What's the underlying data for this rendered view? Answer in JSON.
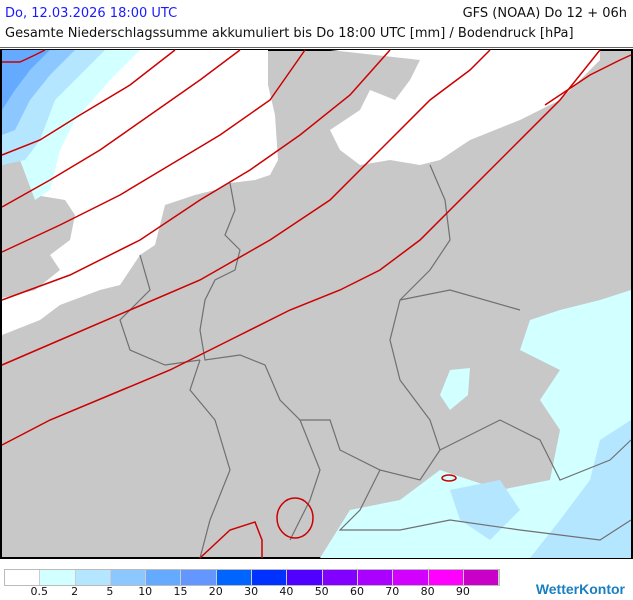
{
  "header": {
    "valid_time": "Do, 12.03.2026 18:00 UTC",
    "model_run": "GFS (NOAA) Do 12 + 06h",
    "title": "Gesamte Niederschlagssumme akkumuliert bis Do 18:00 UTC [mm] / Bodendruck [hPa]"
  },
  "map": {
    "colors": {
      "land": "#c8c8c8",
      "sea": "#ffffff",
      "isobar": "#cc0000",
      "border": "#707070"
    },
    "precip_shown": "light precipitation north-west over North Sea and south-east over Alps/Czechia"
  },
  "legend": {
    "colors": [
      "#ffffff",
      "#d2ffff",
      "#b4e6ff",
      "#8cc8ff",
      "#64aaff",
      "#6496ff",
      "#0064ff",
      "#0032ff",
      "#5000ff",
      "#8200ff",
      "#aa00ff",
      "#d200ff",
      "#ff00ff",
      "#c800c8"
    ],
    "labels": [
      "0.5",
      "2",
      "5",
      "10",
      "15",
      "20",
      "30",
      "40",
      "50",
      "60",
      "70",
      "80",
      "90"
    ]
  },
  "branding": {
    "logo": "WetterKontor"
  }
}
